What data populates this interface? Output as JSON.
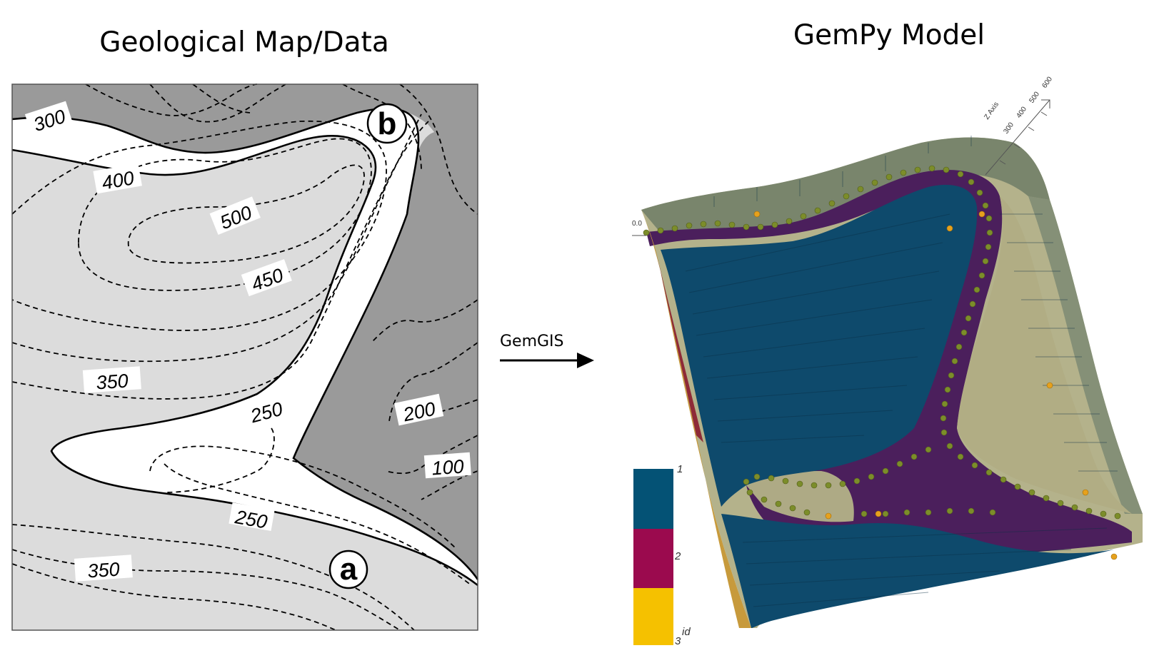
{
  "titles": {
    "left": "Geological Map/Data",
    "right": "GemPy Model"
  },
  "arrow": {
    "label": "GemGIS"
  },
  "map": {
    "contour_labels": [
      "300",
      "400",
      "500",
      "450",
      "350",
      "250",
      "200",
      "100",
      "250",
      "350"
    ],
    "points": {
      "a": "a",
      "b": "b"
    }
  },
  "model": {
    "axis": {
      "title": "Z Axis",
      "ticks": [
        "300",
        "400",
        "500",
        "600"
      ],
      "origin": "0.0"
    },
    "colorbar": {
      "title": "id",
      "ticks": [
        "1",
        "2",
        "3"
      ],
      "colors": [
        "#045275",
        "#9b0a4e",
        "#f5c100"
      ]
    },
    "colors": {
      "unit_blue": "#0b4a6d",
      "unit_purple": "#4a1f5c",
      "unit_khaki": "#b7b389",
      "surface_point": "#7c8d2a",
      "orientation_point": "#e6a11d"
    }
  }
}
